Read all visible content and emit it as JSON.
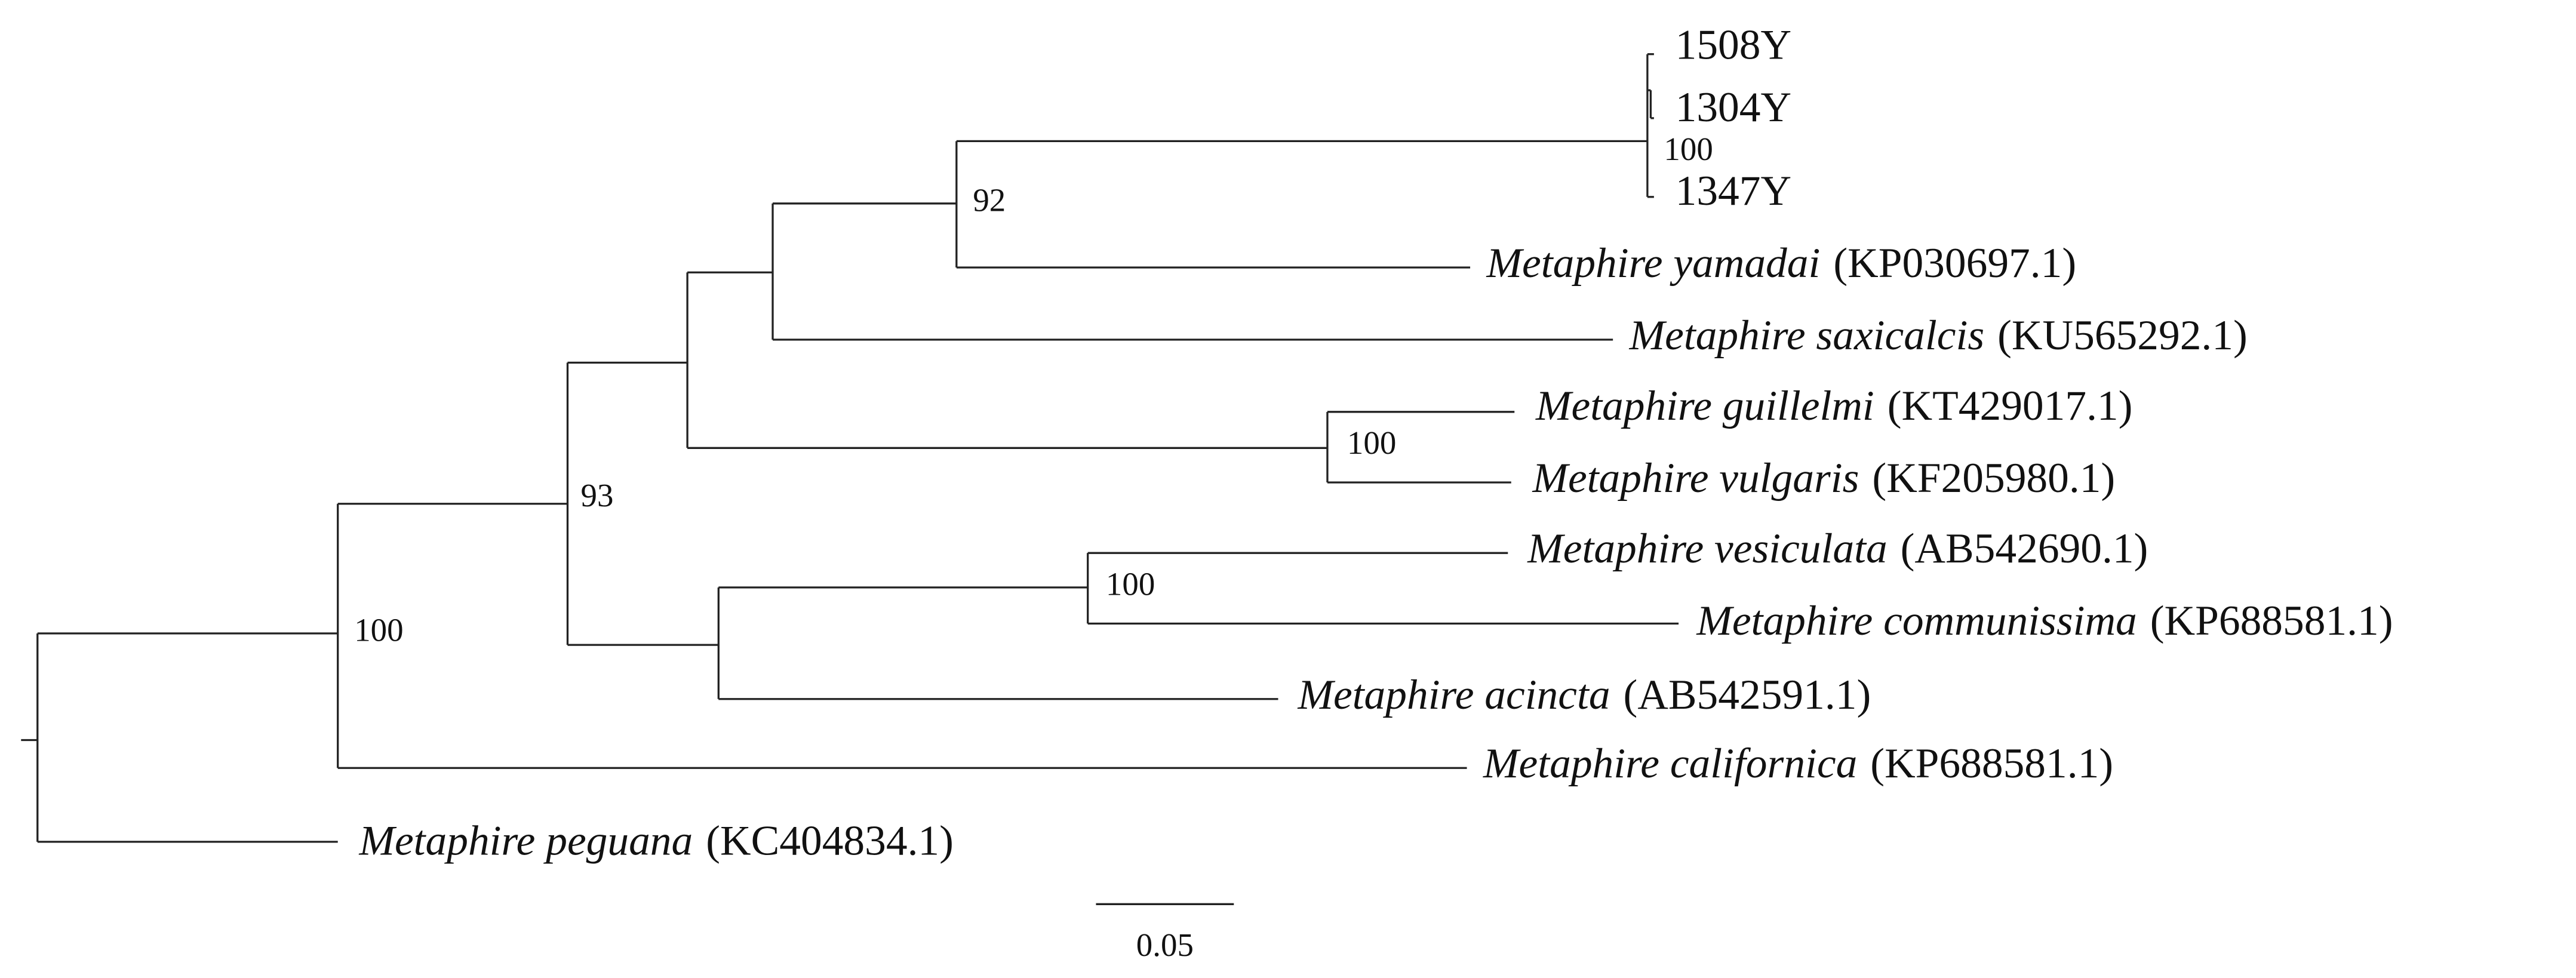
{
  "leaves": [
    {
      "name": "1508Y"
    },
    {
      "name": "1304Y"
    },
    {
      "name": "1347Y"
    },
    {
      "name": "Metaphire yamadai",
      "accession": "(KP030697.1)"
    },
    {
      "name": "Metaphire saxicalcis",
      "accession": "(KU565292.1)"
    },
    {
      "name": "Metaphire guillelmi",
      "accession": "(KT429017.1)"
    },
    {
      "name": "Metaphire vulgaris",
      "accession": "(KF205980.1)"
    },
    {
      "name": "Metaphire vesiculata",
      "accession": "(AB542690.1)"
    },
    {
      "name": "Metaphire communissima",
      "accession": "(KP688581.1)"
    },
    {
      "name": "Metaphire acincta",
      "accession": "(AB542591.1)"
    },
    {
      "name": "Metaphire californica",
      "accession": "(KP688581.1)"
    },
    {
      "name": "Metaphire peguana",
      "accession": "(KC404834.1)"
    }
  ],
  "bootstrap": [
    "100",
    "92",
    "100",
    "100",
    "93",
    "100"
  ],
  "scale_bar": {
    "label": "0.05"
  }
}
